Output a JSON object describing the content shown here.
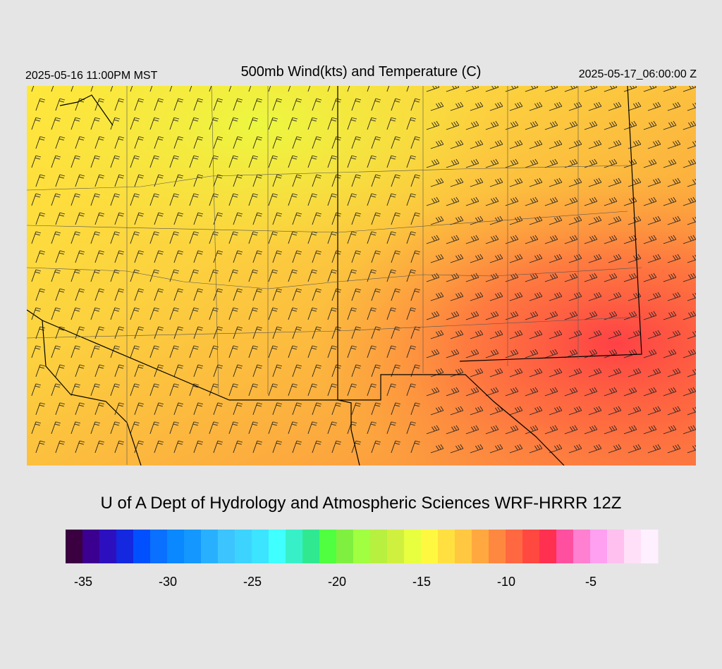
{
  "header": {
    "left": "2025-05-16 11:00PM MST",
    "title": "500mb Wind(kts) and Temperature (C)",
    "right": "2025-05-17_06:00:00 Z"
  },
  "footer": "U of A Dept of Hydrology and Atmospheric Sciences WRF-HRRR 12Z",
  "colorbar": {
    "colors": [
      "#3a0040",
      "#3c0090",
      "#2c10c0",
      "#1428e0",
      "#0050ff",
      "#0a70ff",
      "#0a88ff",
      "#1498ff",
      "#28b0ff",
      "#3cc4ff",
      "#3cd4ff",
      "#3ce4ff",
      "#40ffff",
      "#38f0c8",
      "#30e890",
      "#50ff40",
      "#80f040",
      "#a0ff40",
      "#b8f040",
      "#d0f040",
      "#e8ff40",
      "#fff840",
      "#ffe040",
      "#ffc840",
      "#ffa840",
      "#ff8840",
      "#ff6840",
      "#ff4840",
      "#ff3050",
      "#ff50a0",
      "#ff80d0",
      "#ffa0f0",
      "#ffc0f0",
      "#ffe0f8",
      "#fff0ff"
    ],
    "ticks": [
      -35,
      -30,
      -25,
      -20,
      -15,
      -10,
      -5
    ]
  }
}
